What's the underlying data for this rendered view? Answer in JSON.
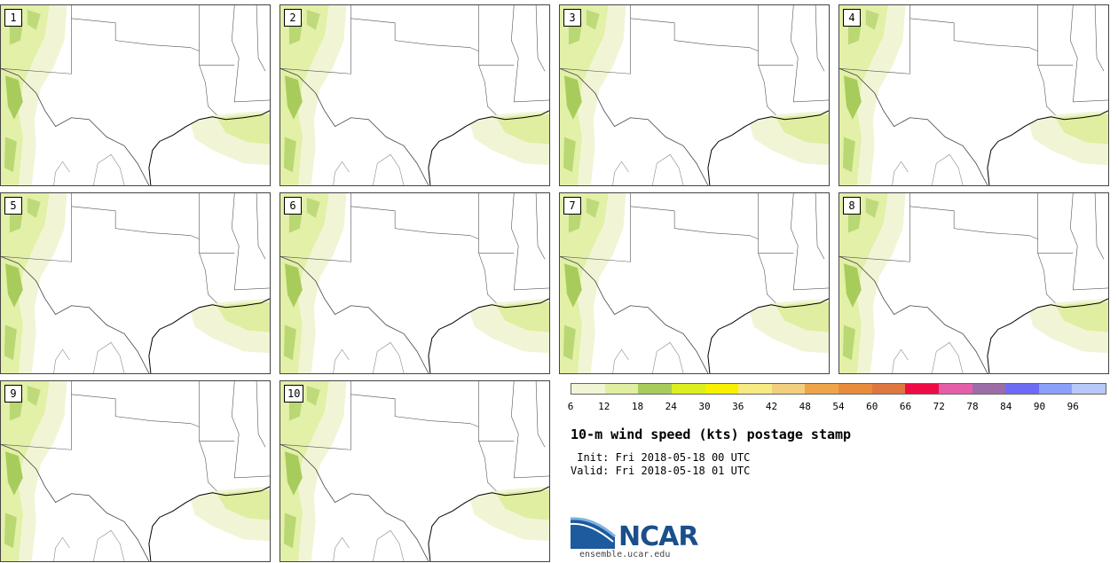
{
  "panels": [
    {
      "label": "1"
    },
    {
      "label": "2"
    },
    {
      "label": "3"
    },
    {
      "label": "4"
    },
    {
      "label": "5"
    },
    {
      "label": "6"
    },
    {
      "label": "7"
    },
    {
      "label": "8"
    },
    {
      "label": "9"
    },
    {
      "label": "10"
    }
  ],
  "colorbar": {
    "labels": [
      "6",
      "12",
      "18",
      "24",
      "30",
      "36",
      "42",
      "48",
      "54",
      "60",
      "66",
      "72",
      "78",
      "84",
      "90",
      "96"
    ],
    "colors": [
      "#f1f5d6",
      "#dfeea0",
      "#a8cc5c",
      "#dcef1e",
      "#f7f100",
      "#f7ea82",
      "#f2cf7e",
      "#eea54a",
      "#e88c3c",
      "#de7840",
      "#ef0c44",
      "#e45fa8",
      "#9c6ea8",
      "#6c6cf6",
      "#8ca0fa",
      "#b8c8fa"
    ]
  },
  "title": "10-m wind speed (kts) postage stamp",
  "init": " Init: Fri 2018-05-18 00 UTC",
  "valid": "Valid: Fri 2018-05-18 01 UTC",
  "logo_text": "NCAR",
  "url": "ensemble.ucar.edu"
}
